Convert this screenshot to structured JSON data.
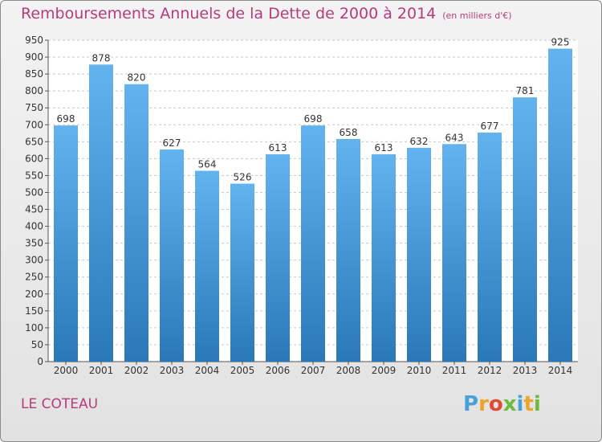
{
  "title": "Remboursements Annuels de la Dette de 2000 à 2014",
  "title_unit": "(en milliers d'€)",
  "commune": "LE COTEAU",
  "logo_text": "Proxiti",
  "colors": {
    "title": "#b83a7c",
    "bar_top": "#62b3ee",
    "bar_bottom": "#2a78b8"
  },
  "chart_data": {
    "type": "bar",
    "title": "Remboursements Annuels de la Dette de 2000 à 2014",
    "categories": [
      "2000",
      "2001",
      "2002",
      "2003",
      "2004",
      "2005",
      "2006",
      "2007",
      "2008",
      "2009",
      "2010",
      "2011",
      "2012",
      "2013",
      "2014"
    ],
    "values": [
      698,
      878,
      820,
      627,
      564,
      526,
      613,
      698,
      658,
      613,
      632,
      643,
      677,
      781,
      925
    ],
    "ylim": [
      0,
      950
    ],
    "yticks": [
      0,
      50,
      100,
      150,
      200,
      250,
      300,
      350,
      400,
      450,
      500,
      550,
      600,
      650,
      700,
      750,
      800,
      850,
      900,
      950
    ],
    "grid": true,
    "xlabel": "",
    "ylabel": ""
  }
}
